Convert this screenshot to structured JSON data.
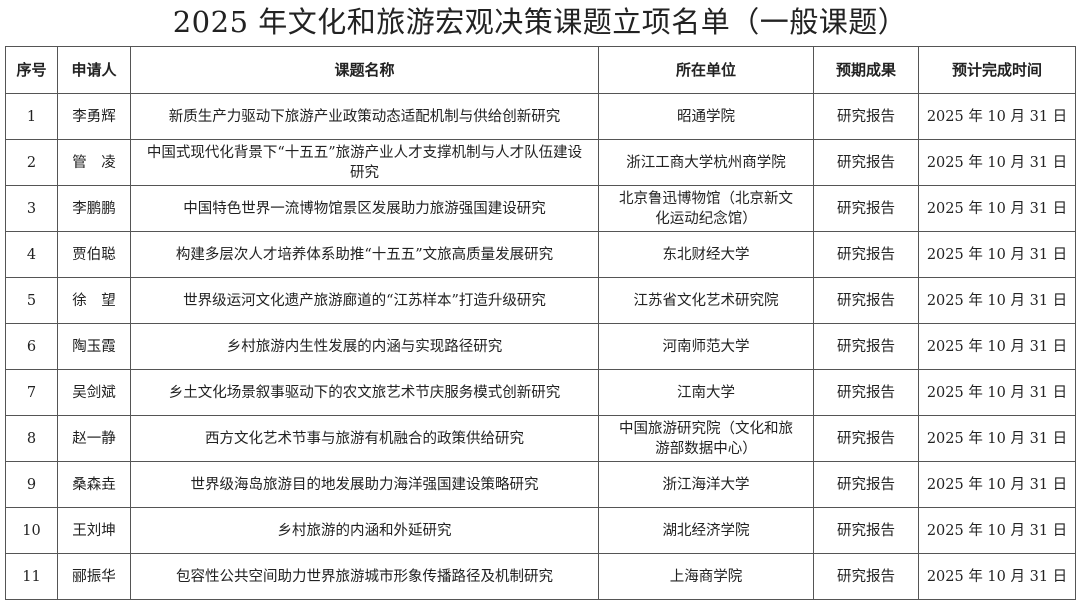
{
  "title": "2025 年文化和旅游宏观决策课题立项名单（一般课题）",
  "headers": [
    "序号",
    "申请人",
    "课题名称",
    "所在单位",
    "预期成果",
    "预计完成时间"
  ],
  "rows": [
    {
      "no": "1",
      "applicant": "李勇辉",
      "topic": "新质生产力驱动下旅游产业政策动态适配机制与供给创新研究",
      "unit": "昭通学院",
      "result": "研究报告",
      "date": "2025 年 10 月 31 日"
    },
    {
      "no": "2",
      "applicant": "管　凌",
      "topic": "中国式现代化背景下“十五五”旅游产业人才支撑机制与人才队伍建设研究",
      "unit": "浙江工商大学杭州商学院",
      "result": "研究报告",
      "date": "2025 年 10 月 31 日"
    },
    {
      "no": "3",
      "applicant": "李鹏鹏",
      "topic": "中国特色世界一流博物馆景区发展助力旅游强国建设研究",
      "unit": "北京鲁迅博物馆（北京新文化运动纪念馆）",
      "result": "研究报告",
      "date": "2025 年 10 月 31 日"
    },
    {
      "no": "4",
      "applicant": "贾伯聪",
      "topic": "构建多层次人才培养体系助推“十五五”文旅高质量发展研究",
      "unit": "东北财经大学",
      "result": "研究报告",
      "date": "2025 年 10 月 31 日"
    },
    {
      "no": "5",
      "applicant": "徐　望",
      "topic": "世界级运河文化遗产旅游廊道的“江苏样本”打造升级研究",
      "unit": "江苏省文化艺术研究院",
      "result": "研究报告",
      "date": "2025 年 10 月 31 日"
    },
    {
      "no": "6",
      "applicant": "陶玉霞",
      "topic": "乡村旅游内生性发展的内涵与实现路径研究",
      "unit": "河南师范大学",
      "result": "研究报告",
      "date": "2025 年 10 月 31 日"
    },
    {
      "no": "7",
      "applicant": "吴剑斌",
      "topic": "乡土文化场景叙事驱动下的农文旅艺术节庆服务模式创新研究",
      "unit": "江南大学",
      "result": "研究报告",
      "date": "2025 年 10 月 31 日"
    },
    {
      "no": "8",
      "applicant": "赵一静",
      "topic": "西方文化艺术节事与旅游有机融合的政策供给研究",
      "unit": "中国旅游研究院（文化和旅游部数据中心）",
      "result": "研究报告",
      "date": "2025 年 10 月 31 日"
    },
    {
      "no": "9",
      "applicant": "桑森垚",
      "topic": "世界级海岛旅游目的地发展助力海洋强国建设策略研究",
      "unit": "浙江海洋大学",
      "result": "研究报告",
      "date": "2025 年 10 月 31 日"
    },
    {
      "no": "10",
      "applicant": "王刘坤",
      "topic": "乡村旅游的内涵和外延研究",
      "unit": "湖北经济学院",
      "result": "研究报告",
      "date": "2025 年 10 月 31 日"
    },
    {
      "no": "11",
      "applicant": "郦振华",
      "topic": "包容性公共空间助力世界旅游城市形象传播路径及机制研究",
      "unit": "上海商学院",
      "result": "研究报告",
      "date": "2025 年 10 月 31 日"
    }
  ]
}
